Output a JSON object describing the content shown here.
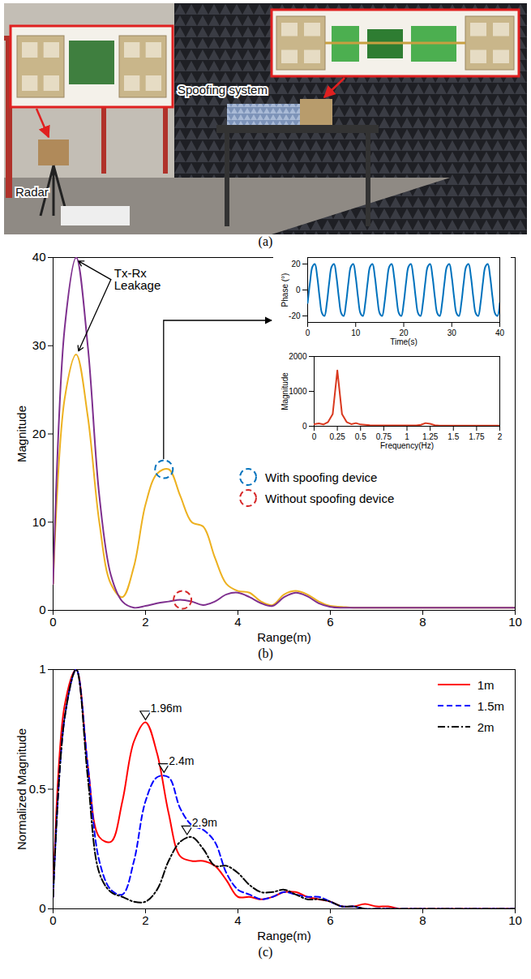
{
  "photo": {
    "labels": [
      "Radar",
      "Spoofing system"
    ],
    "caption": "(a)"
  },
  "chart_data": [
    {
      "type": "line",
      "caption": "(b)",
      "xlabel": "Range(m)",
      "ylabel": "Magnitude",
      "xlim": [
        0,
        10
      ],
      "ylim": [
        0,
        40
      ],
      "xticks": [
        0,
        2,
        4,
        6,
        8,
        10
      ],
      "yticks": [
        0,
        10,
        20,
        30,
        40
      ],
      "grid": false,
      "legend": "right",
      "x": [
        0,
        0.25,
        0.5,
        0.75,
        1,
        1.25,
        1.5,
        1.75,
        2,
        2.25,
        2.5,
        2.75,
        3,
        3.25,
        3.5,
        3.75,
        4,
        4.25,
        4.5,
        4.75,
        5,
        5.25,
        5.5,
        5.75,
        6,
        6.25,
        6.5,
        6.75,
        7,
        7.25,
        7.5,
        7.75,
        8,
        8.25,
        8.5,
        8.75,
        9,
        9.25,
        9.5,
        9.75,
        10
      ],
      "series": [
        {
          "color": "#edb120",
          "values": [
            3,
            24,
            29,
            22,
            10,
            3,
            1.5,
            5,
            12,
            15.5,
            16,
            13,
            10,
            9.5,
            6,
            3,
            2.2,
            2,
            1,
            0.6,
            1.8,
            2.2,
            1.8,
            1,
            0.5,
            0.4,
            0.3,
            0.3,
            0.3,
            0.3,
            0.3,
            0.3,
            0.3,
            0.3,
            0.3,
            0.3,
            0.3,
            0.3,
            0.3,
            0.3,
            0.3
          ]
        },
        {
          "color": "#7e2f8e",
          "values": [
            3,
            32,
            40,
            30,
            13,
            4,
            1,
            0.3,
            0.5,
            0.8,
            1,
            1.2,
            1,
            0.6,
            1,
            1.8,
            2,
            1.5,
            0.8,
            0.5,
            1.5,
            2,
            1.6,
            0.8,
            0.4,
            0.3,
            0.3,
            0.3,
            0.3,
            0.3,
            0.3,
            0.3,
            0.3,
            0.3,
            0.3,
            0.3,
            0.3,
            0.3,
            0.3,
            0.3,
            0.3
          ]
        }
      ],
      "annotations": [
        {
          "text": "Tx-Rx Leakage",
          "x": 1.25,
          "y": 37.5,
          "arrows": [
            {
              "x": 0.55,
              "y": 39.6
            },
            {
              "x": 0.55,
              "y": 29.4
            }
          ]
        },
        {
          "text": "With spoofing device",
          "marker": "circle",
          "line_style": "dashed",
          "color": "#0072bd",
          "x": 2.4,
          "y": 16
        },
        {
          "text": "Without spoofing device",
          "marker": "circle",
          "line_style": "dashed",
          "color": "#d62728",
          "x": 2.8,
          "y": 1.2
        }
      ],
      "insets": [
        {
          "type": "line",
          "xlabel": "Time(s)",
          "ylabel": "Phase (°)",
          "color": "#0072bd",
          "xlim": [
            0,
            40
          ],
          "ylim": [
            -25,
            25
          ],
          "xticks": [
            0,
            10,
            20,
            30,
            40
          ],
          "yticks": [
            -20,
            0,
            20
          ],
          "x": [
            0,
            0.5,
            1,
            1.5,
            2,
            2.5,
            3,
            3.5,
            4,
            4.5,
            5,
            5.5,
            6,
            6.5,
            7,
            7.5,
            8,
            8.5,
            9,
            9.5,
            10,
            10.5,
            11,
            11.5,
            12,
            12.5,
            13,
            13.5,
            14,
            14.5,
            15,
            15.5,
            16,
            16.5,
            17,
            17.5,
            18,
            18.5,
            19,
            19.5,
            20,
            20.5,
            21,
            21.5,
            22,
            22.5,
            23,
            23.5,
            24,
            24.5,
            25,
            25.5,
            26,
            26.5,
            27,
            27.5,
            28,
            28.5,
            29,
            29.5,
            30,
            30.5,
            31,
            31.5,
            32,
            32.5,
            33,
            33.5,
            34,
            34.5,
            35,
            35.5,
            36,
            36.5,
            37,
            37.5,
            38,
            38.5,
            39,
            39.5,
            40
          ],
          "values": [
            -10,
            6,
            18,
            20,
            10,
            -6,
            -18,
            -20,
            -10,
            6,
            18,
            20,
            10,
            -6,
            -18,
            -20,
            -10,
            6,
            18,
            20,
            10,
            -6,
            -18,
            -20,
            -10,
            6,
            18,
            20,
            10,
            -6,
            -18,
            -20,
            -10,
            6,
            18,
            20,
            10,
            -6,
            -18,
            -20,
            -10,
            6,
            18,
            20,
            10,
            -6,
            -18,
            -20,
            -10,
            6,
            18,
            20,
            10,
            -6,
            -18,
            -20,
            -10,
            6,
            18,
            20,
            10,
            -6,
            -18,
            -20,
            -10,
            6,
            18,
            20,
            10,
            -6,
            -18,
            -20,
            -10,
            6,
            18,
            20,
            10,
            -6,
            -18,
            -20,
            -10
          ]
        },
        {
          "type": "line",
          "xlabel": "Frequency(Hz)",
          "ylabel": "Magnitude",
          "color": "#d9381e",
          "xlim": [
            0,
            2
          ],
          "ylim": [
            0,
            2000
          ],
          "xticks": [
            0,
            0.25,
            0.5,
            0.75,
            1,
            1.25,
            1.5,
            1.75,
            2
          ],
          "yticks": [
            0,
            1000,
            2000
          ],
          "x": [
            0,
            0.05,
            0.1,
            0.15,
            0.2,
            0.25,
            0.3,
            0.35,
            0.4,
            0.45,
            0.5,
            0.55,
            0.6,
            0.65,
            0.7,
            0.75,
            0.8,
            0.85,
            0.9,
            0.95,
            1,
            1.05,
            1.1,
            1.15,
            1.2,
            1.25,
            1.3,
            1.35,
            1.4,
            1.45,
            1.5,
            1.55,
            1.6,
            1.65,
            1.7,
            1.75,
            1.8,
            1.85,
            1.9,
            1.95,
            2
          ],
          "values": [
            60,
            80,
            50,
            120,
            350,
            1600,
            350,
            120,
            60,
            90,
            50,
            40,
            30,
            25,
            25,
            25,
            25,
            25,
            25,
            25,
            25,
            25,
            25,
            40,
            90,
            70,
            30,
            20,
            20,
            20,
            20,
            20,
            20,
            20,
            20,
            20,
            20,
            20,
            20,
            20,
            20
          ]
        }
      ]
    },
    {
      "type": "line",
      "caption": "(c)",
      "xlabel": "Range(m)",
      "ylabel": "Normalized Magnitude",
      "xlim": [
        0,
        10
      ],
      "ylim": [
        0,
        1
      ],
      "xticks": [
        0,
        2,
        4,
        6,
        8,
        10
      ],
      "yticks": [
        0,
        0.5,
        1
      ],
      "grid": false,
      "legend": "top right",
      "x": [
        0,
        0.25,
        0.5,
        0.75,
        1,
        1.25,
        1.5,
        1.75,
        2,
        2.25,
        2.5,
        2.75,
        3,
        3.25,
        3.5,
        3.75,
        4,
        4.25,
        4.5,
        4.75,
        5,
        5.25,
        5.5,
        5.75,
        6,
        6.25,
        6.5,
        6.75,
        7,
        7.25,
        7.5,
        7.75,
        8,
        8.25,
        8.5,
        8.75,
        9,
        9.25,
        9.5,
        9.75,
        10
      ],
      "series": [
        {
          "name": "1m",
          "color": "#ff0000",
          "line_style": "solid",
          "values": [
            0.05,
            0.85,
            1,
            0.6,
            0.3,
            0.28,
            0.45,
            0.7,
            0.78,
            0.65,
            0.4,
            0.22,
            0.2,
            0.2,
            0.18,
            0.12,
            0.05,
            0.05,
            0.04,
            0.05,
            0.07,
            0.07,
            0.05,
            0.04,
            0.03,
            0.01,
            0.01,
            0.02,
            0.01,
            0.01,
            0,
            0,
            0,
            0,
            0,
            0,
            0,
            0,
            0,
            0,
            0
          ]
        },
        {
          "name": "1.5m",
          "color": "#0000ff",
          "line_style": "dashed",
          "values": [
            0.05,
            0.8,
            1,
            0.6,
            0.2,
            0.08,
            0.06,
            0.2,
            0.45,
            0.55,
            0.55,
            0.42,
            0.35,
            0.33,
            0.28,
            0.15,
            0.08,
            0.06,
            0.04,
            0.05,
            0.07,
            0.06,
            0.05,
            0.05,
            0.03,
            0.01,
            0.01,
            0,
            0,
            0,
            0,
            0,
            0,
            0,
            0,
            0,
            0,
            0,
            0,
            0,
            0
          ]
        },
        {
          "name": "2m",
          "color": "#000000",
          "line_style": "dashdot",
          "values": [
            0.05,
            0.8,
            1,
            0.55,
            0.15,
            0.07,
            0.05,
            0.03,
            0.03,
            0.08,
            0.2,
            0.28,
            0.3,
            0.25,
            0.18,
            0.18,
            0.15,
            0.1,
            0.07,
            0.07,
            0.08,
            0.06,
            0.04,
            0.04,
            0.03,
            0.01,
            0.01,
            0,
            0,
            0,
            0,
            0,
            0,
            0,
            0,
            0,
            0,
            0,
            0,
            0,
            0
          ]
        }
      ],
      "annotations": [
        {
          "text": "1.96m",
          "marker": "triangle",
          "x": 2,
          "y": 0.78
        },
        {
          "text": "2.4m",
          "marker": "triangle",
          "x": 2.4,
          "y": 0.56
        },
        {
          "text": "2.9m",
          "marker": "triangle",
          "x": 2.9,
          "y": 0.3
        }
      ]
    }
  ]
}
